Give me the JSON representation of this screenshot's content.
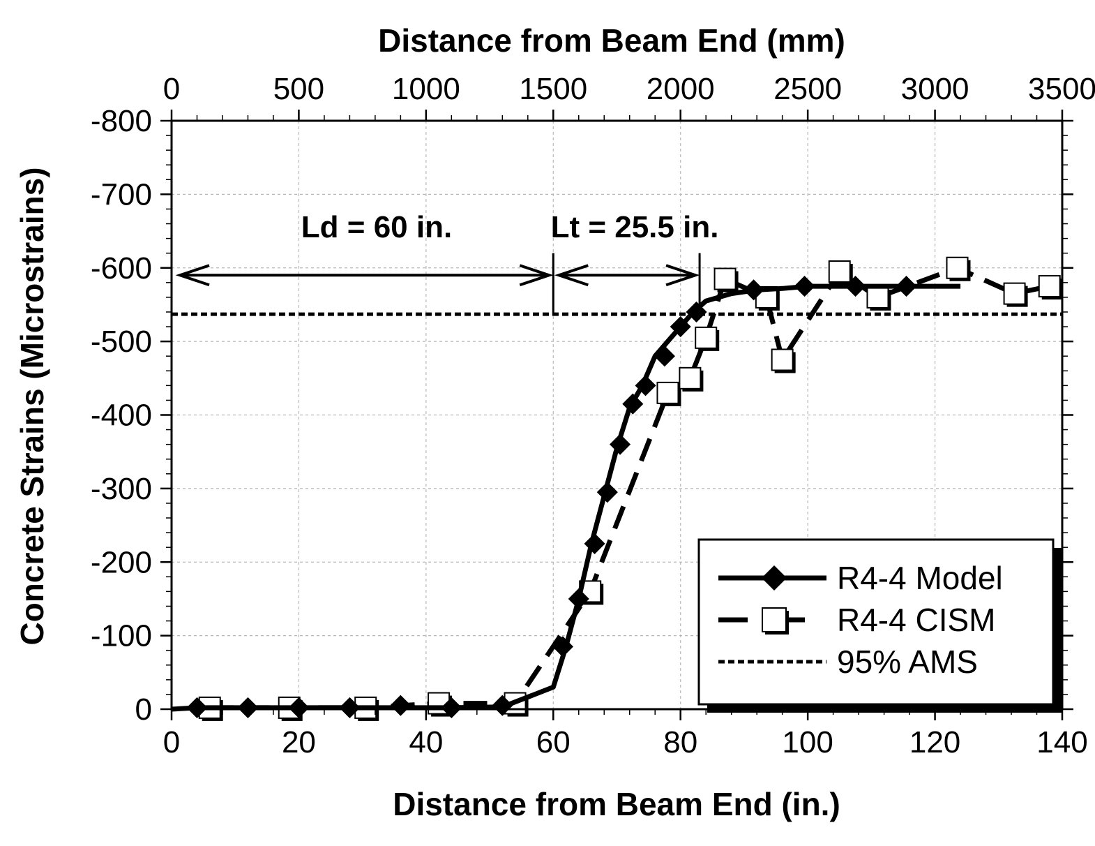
{
  "chart_data": {
    "type": "line",
    "xlabel": "Distance from Beam End (in.)",
    "x2label": "Distance from Beam End (mm)",
    "ylabel": "Concrete Strains (Microstrains)",
    "xlim": [
      0,
      140
    ],
    "x2lim": [
      0,
      3500
    ],
    "ylim": [
      0,
      -800
    ],
    "x_ticks": [
      "0",
      "20",
      "40",
      "60",
      "80",
      "100",
      "120",
      "140"
    ],
    "x2_ticks": [
      "0",
      "500",
      "1000",
      "1500",
      "2000",
      "2500",
      "3000",
      "3500"
    ],
    "y_ticks": [
      "-800",
      "-700",
      "-600",
      "-500",
      "-400",
      "-300",
      "-200",
      "-100",
      "0"
    ],
    "grid": true,
    "legend_position": "bottom-right",
    "series": [
      {
        "name": "R4-4 Model",
        "style": "solid",
        "marker": "diamond",
        "color": "#000000",
        "x": [
          0,
          4,
          12,
          20,
          28,
          36,
          44,
          52,
          60,
          62,
          64,
          66,
          68,
          70,
          72,
          74,
          76,
          78,
          80,
          82,
          84,
          88,
          92,
          96,
          100,
          104,
          108,
          116,
          124
        ],
        "y": [
          0,
          -2,
          -2,
          -2,
          -2,
          -2,
          -2,
          -3,
          -30,
          -85,
          -150,
          -225,
          -290,
          -355,
          -410,
          -440,
          -480,
          -500,
          -520,
          -540,
          -555,
          -565,
          -570,
          -572,
          -575,
          -575,
          -575,
          -575,
          -575
        ],
        "marker_x": [
          4,
          12,
          20,
          28,
          36,
          44,
          52,
          61.5,
          64,
          66.5,
          68.5,
          70.5,
          72.5,
          74.5,
          77.5,
          80,
          82.5,
          91.5,
          99.5,
          107.5,
          115.5
        ],
        "marker_y": [
          -2,
          -2,
          -2,
          -2,
          -5,
          -2,
          -5,
          -85,
          -150,
          -225,
          -295,
          -360,
          -415,
          -440,
          -480,
          -520,
          -540,
          -570,
          -575,
          -575,
          -575
        ]
      },
      {
        "name": "R4-4 CISM",
        "style": "dashed",
        "marker": "open-square",
        "color": "#000000",
        "x": [
          6,
          18.5,
          30.5,
          42,
          54,
          65.8,
          78,
          81.5,
          84,
          87,
          93.5,
          96,
          105,
          111,
          123.5,
          132.5,
          138
        ],
        "y": [
          -2,
          -2,
          -2,
          -8,
          -8,
          -160,
          -430,
          -450,
          -505,
          -585,
          -560,
          -475,
          -595,
          -560,
          -600,
          -565,
          -575
        ],
        "marker_x": [
          6,
          18.5,
          30.5,
          42,
          54,
          65.8,
          78,
          81.5,
          84,
          87,
          93.5,
          96,
          105,
          111,
          123.5,
          132.5,
          138
        ],
        "marker_y": [
          -2,
          -2,
          -2,
          -8,
          -8,
          -160,
          -430,
          -450,
          -505,
          -585,
          -560,
          -475,
          -595,
          -560,
          -600,
          -565,
          -575
        ]
      },
      {
        "name": "95% AMS",
        "style": "dotted",
        "marker": "none",
        "color": "#000000",
        "x": [
          0,
          140
        ],
        "y": [
          -537,
          -537
        ]
      }
    ],
    "annotations": [
      {
        "text": "Ld = 60 in.",
        "arrow_from_x": 0,
        "arrow_to_x": 60,
        "arrow_y": -590
      },
      {
        "text": "Lt = 25.5 in.",
        "arrow_from_x": 60,
        "arrow_to_x": 83,
        "arrow_y": -590
      }
    ]
  }
}
